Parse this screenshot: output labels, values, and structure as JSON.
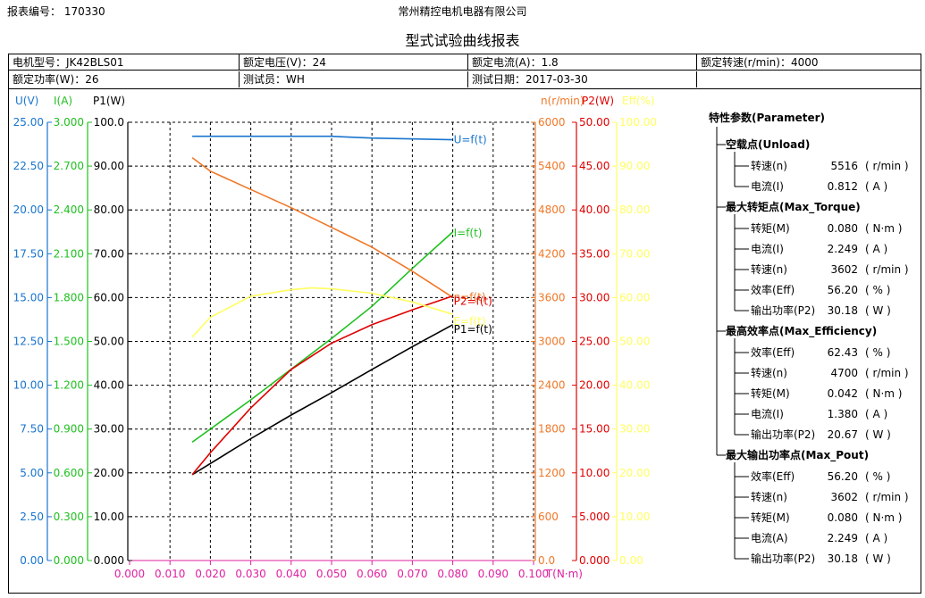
{
  "header": {
    "report_no": "报表编号： 170330",
    "company": "常州精控电机电器有限公司",
    "title": "型式试验曲线报表"
  },
  "info": {
    "motor_model": "电机型号：JK42BLS01",
    "rated_voltage": "额定电压(V)：24",
    "rated_current": "额定电流(A)：1.8",
    "rated_speed": "额定转速(r/min)：4000",
    "rated_power": "额定功率(W)：26",
    "tester": "测试员：WH",
    "test_date": "测试日期：2017-03-30"
  },
  "colors": {
    "voltage": "#1874cd",
    "current": "#20c020",
    "p1": "#000000",
    "speed": "#f07828",
    "p2": "#e00000",
    "efficiency": "#ffff60",
    "torque_axis": "#e020a0"
  },
  "chart_data": {
    "type": "line",
    "x": {
      "label": "T(N·m)",
      "lim": [
        0,
        0.1
      ],
      "ticks": [
        "0.000",
        "0.010",
        "0.020",
        "0.030",
        "0.040",
        "0.050",
        "0.060",
        "0.070",
        "0.080",
        "0.090",
        "0.100"
      ]
    },
    "axes": {
      "voltage": {
        "label": "U(V)",
        "lim": [
          0,
          25
        ],
        "ticks": [
          "0.00",
          "2.50",
          "5.00",
          "7.50",
          "10.00",
          "12.50",
          "15.00",
          "17.50",
          "20.00",
          "22.50",
          "25.00"
        ]
      },
      "current": {
        "label": "I(A)",
        "lim": [
          0,
          3
        ],
        "ticks": [
          "0.000",
          "0.300",
          "0.600",
          "0.900",
          "1.200",
          "1.500",
          "1.800",
          "2.100",
          "2.400",
          "2.700",
          "3.000"
        ]
      },
      "p1": {
        "label": "P1(W)",
        "lim": [
          0,
          100
        ],
        "ticks": [
          "0.000",
          "10.00",
          "20.00",
          "30.00",
          "40.00",
          "50.00",
          "60.00",
          "70.00",
          "80.00",
          "90.00",
          "100.0"
        ]
      },
      "speed": {
        "label": "n(r/min)",
        "lim": [
          0,
          6000
        ],
        "ticks": [
          "0.0",
          "600",
          "1200",
          "1800",
          "2400",
          "3000",
          "3600",
          "4200",
          "4800",
          "5400",
          "6000"
        ]
      },
      "p2": {
        "label": "P2(W)",
        "lim": [
          0,
          50
        ],
        "ticks": [
          "0.000",
          "5.000",
          "10.00",
          "15.00",
          "20.00",
          "25.00",
          "30.00",
          "35.00",
          "40.00",
          "45.00",
          "50.00"
        ]
      },
      "efficiency": {
        "label": "Eff(%)",
        "lim": [
          0,
          100
        ],
        "ticks": [
          "0.00",
          "10.00",
          "20.00",
          "30.00",
          "40.00",
          "50.00",
          "60.00",
          "70.00",
          "80.00",
          "90.00",
          "100.00"
        ]
      }
    },
    "grid": true,
    "series": [
      {
        "name": "U=f(t)",
        "axis": "voltage",
        "points": [
          [
            0.0155,
            24.2
          ],
          [
            0.05,
            24.2
          ],
          [
            0.06,
            24.1
          ],
          [
            0.08,
            24.0
          ]
        ]
      },
      {
        "name": "I=f(t)",
        "axis": "current",
        "points": [
          [
            0.0155,
            0.81
          ],
          [
            0.03,
            1.1
          ],
          [
            0.05,
            1.52
          ],
          [
            0.06,
            1.74
          ],
          [
            0.07,
            2.0
          ],
          [
            0.08,
            2.249
          ]
        ]
      },
      {
        "name": "P1=f(t)",
        "axis": "p1",
        "points": [
          [
            0.0155,
            19.6
          ],
          [
            0.03,
            27.8
          ],
          [
            0.04,
            33.2
          ],
          [
            0.05,
            38.3
          ],
          [
            0.06,
            43.6
          ],
          [
            0.07,
            48.8
          ],
          [
            0.08,
            53.8
          ]
        ]
      },
      {
        "name": "n=f(t)",
        "axis": "speed",
        "points": [
          [
            0.0155,
            5516
          ],
          [
            0.02,
            5330
          ],
          [
            0.03,
            5080
          ],
          [
            0.04,
            4830
          ],
          [
            0.05,
            4560
          ],
          [
            0.06,
            4290
          ],
          [
            0.07,
            3960
          ],
          [
            0.08,
            3602
          ]
        ]
      },
      {
        "name": "P2=f(t)",
        "axis": "p2",
        "points": [
          [
            0.0155,
            9.8
          ],
          [
            0.02,
            12.3
          ],
          [
            0.03,
            17.4
          ],
          [
            0.04,
            21.8
          ],
          [
            0.05,
            24.8
          ],
          [
            0.06,
            26.9
          ],
          [
            0.07,
            28.6
          ],
          [
            0.08,
            30.18
          ]
        ]
      },
      {
        "name": "E=f(t)",
        "axis": "efficiency",
        "points": [
          [
            0.0155,
            51.0
          ],
          [
            0.02,
            55.5
          ],
          [
            0.03,
            60.3
          ],
          [
            0.04,
            61.8
          ],
          [
            0.045,
            62.2
          ],
          [
            0.05,
            62.0
          ],
          [
            0.06,
            61.0
          ],
          [
            0.07,
            59.0
          ],
          [
            0.08,
            56.2
          ]
        ]
      }
    ]
  },
  "params": {
    "title": "特性参数(Parameter)",
    "groups": [
      {
        "name": "空载点(Unload)",
        "items": [
          {
            "label": "转速(n)",
            "value": "5516",
            "unit": "( r/min )"
          },
          {
            "label": "电流(I)",
            "value": "0.812",
            "unit": "( A )"
          }
        ]
      },
      {
        "name": "最大转矩点(Max_Torque)",
        "items": [
          {
            "label": "转矩(M)",
            "value": "0.080",
            "unit": "( N·m )"
          },
          {
            "label": "电流(I)",
            "value": "2.249",
            "unit": "( A )"
          },
          {
            "label": "转速(n)",
            "value": "3602",
            "unit": "( r/min )"
          },
          {
            "label": "效率(Eff)",
            "value": "56.20",
            "unit": "( % )"
          },
          {
            "label": "输出功率(P2)",
            "value": "30.18",
            "unit": "( W )"
          }
        ]
      },
      {
        "name": "最高效率点(Max_Efficiency)",
        "items": [
          {
            "label": "效率(Eff)",
            "value": "62.43",
            "unit": "( % )"
          },
          {
            "label": "转速(n)",
            "value": "4700",
            "unit": "( r/min )"
          },
          {
            "label": "转矩(M)",
            "value": "0.042",
            "unit": "( N·m )"
          },
          {
            "label": "电流(I)",
            "value": "1.380",
            "unit": "( A )"
          },
          {
            "label": "输出功率(P2)",
            "value": "20.67",
            "unit": "( W )"
          }
        ]
      },
      {
        "name": "最大输出功率点(Max_Pout)",
        "items": [
          {
            "label": "效率(Eff)",
            "value": "56.20",
            "unit": "( % )"
          },
          {
            "label": "转速(n)",
            "value": "3602",
            "unit": "( r/min )"
          },
          {
            "label": "转矩(M)",
            "value": "0.080",
            "unit": "( N·m )"
          },
          {
            "label": "电流(A)",
            "value": "2.249",
            "unit": "( A )"
          },
          {
            "label": "输出功率(P2)",
            "value": "30.18",
            "unit": "( W )"
          }
        ]
      }
    ]
  }
}
